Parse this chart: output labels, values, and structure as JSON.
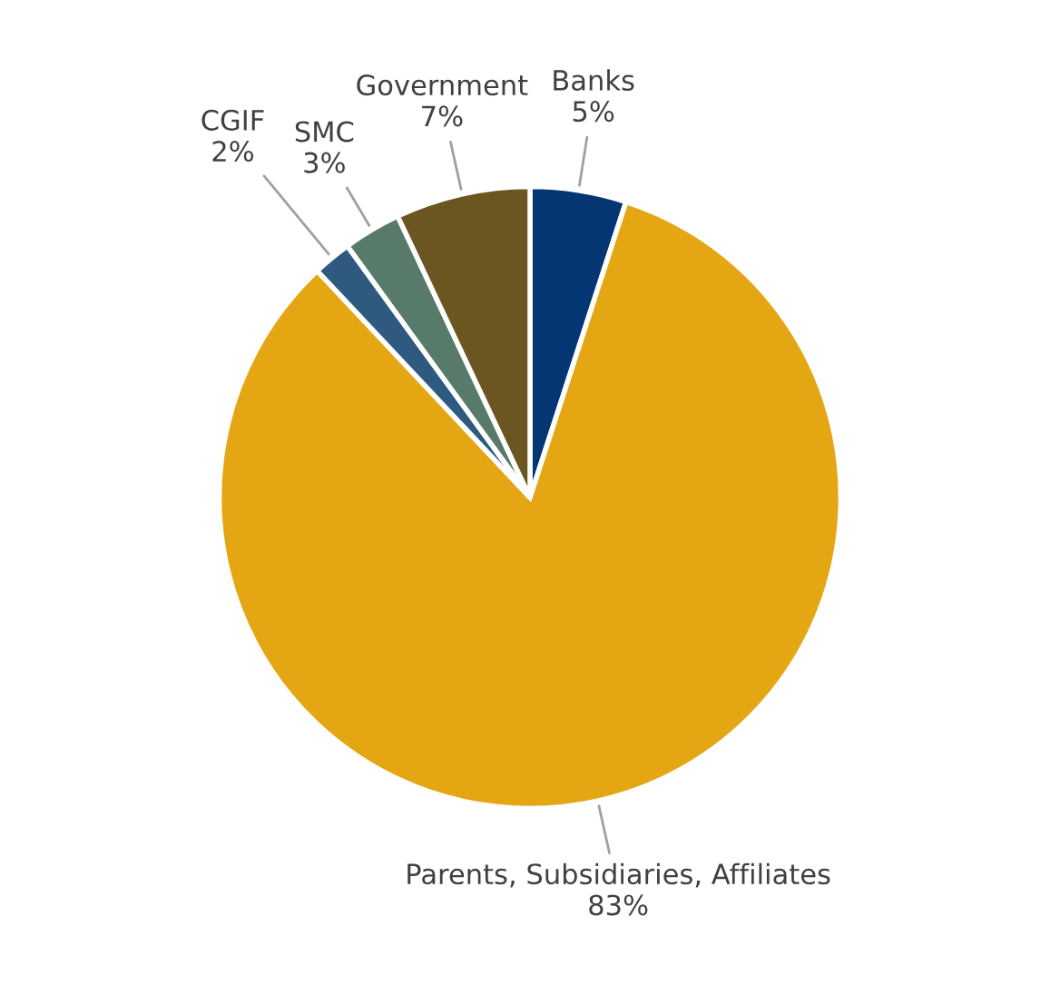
{
  "chart_data": {
    "type": "pie",
    "categories": [
      "Banks",
      "Parents, Subsidiaries, Affiliates",
      "CGIF",
      "SMC",
      "Government"
    ],
    "values": [
      5,
      83,
      2,
      3,
      7
    ],
    "value_labels": [
      "5%",
      "83%",
      "2%",
      "3%",
      "7%"
    ],
    "colors": [
      "#043673",
      "#e5a614",
      "#2e5a7f",
      "#587a6a",
      "#6b5520"
    ],
    "legend": false
  }
}
